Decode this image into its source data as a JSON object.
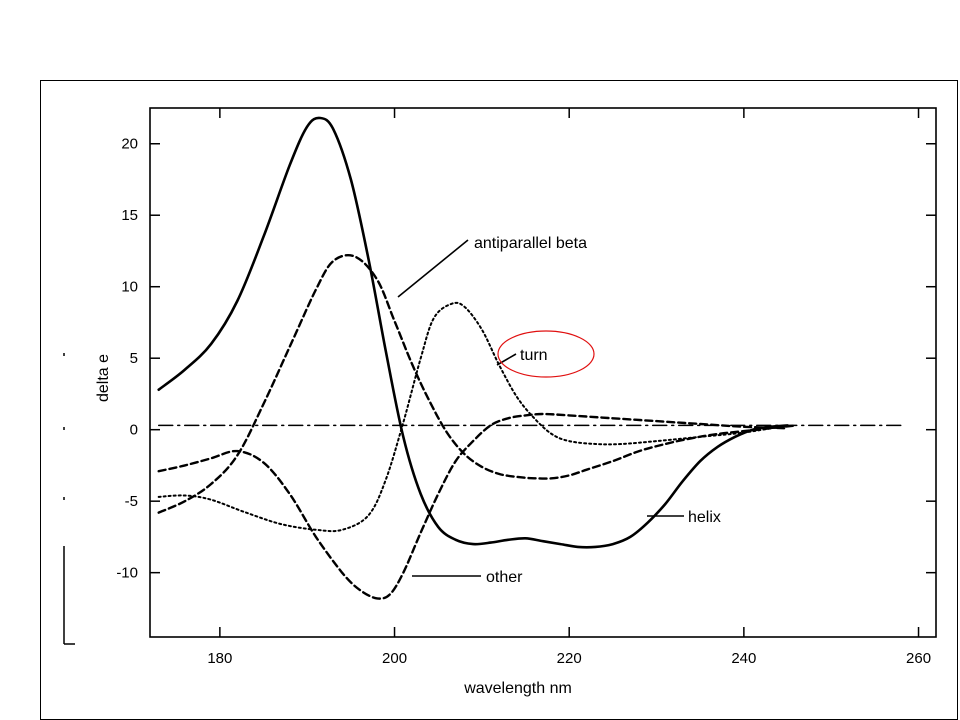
{
  "chart_data": {
    "type": "line",
    "xlabel": "wavelength nm",
    "ylabel": "delta e",
    "xlim": [
      172,
      262
    ],
    "ylim": [
      -14.5,
      22.5
    ],
    "x_ticks": [
      180,
      200,
      220,
      240,
      260
    ],
    "y_ticks": [
      20,
      15,
      10,
      5,
      0,
      -5,
      -10
    ],
    "grid": false,
    "series": [
      {
        "name": "helix",
        "style": "solid",
        "x": [
          173,
          176,
          179,
          182,
          185,
          188,
          190,
          191.5,
          193,
          195,
          197,
          199,
          201,
          203,
          205,
          207,
          209,
          211,
          213,
          215,
          217,
          219,
          221,
          223,
          225,
          227,
          229,
          231,
          233,
          235,
          237,
          239,
          241,
          243,
          245
        ],
        "y": [
          2.8,
          4.2,
          6.0,
          9.0,
          13.5,
          18.5,
          21.2,
          21.8,
          21.0,
          17.5,
          12.0,
          5.5,
          -0.5,
          -4.5,
          -6.8,
          -7.7,
          -8.0,
          -7.9,
          -7.7,
          -7.6,
          -7.8,
          -8.0,
          -8.2,
          -8.2,
          -8.0,
          -7.5,
          -6.5,
          -5.2,
          -3.6,
          -2.2,
          -1.2,
          -0.5,
          0.0,
          0.2,
          0.3
        ]
      },
      {
        "name": "antiparallel beta",
        "style": "dashed",
        "x": [
          173,
          176,
          179,
          182,
          185,
          188,
          191,
          193,
          195.5,
          198,
          200,
          202,
          204,
          206,
          208,
          210,
          212,
          214,
          216,
          218,
          220,
          222,
          225,
          228,
          231,
          234,
          237,
          240,
          243,
          246
        ],
        "y": [
          -5.8,
          -5.0,
          -3.8,
          -1.8,
          1.8,
          5.8,
          9.8,
          11.8,
          12.1,
          10.5,
          7.6,
          4.6,
          2.0,
          -0.2,
          -1.7,
          -2.6,
          -3.1,
          -3.3,
          -3.4,
          -3.4,
          -3.2,
          -2.8,
          -2.2,
          -1.5,
          -1.0,
          -0.6,
          -0.3,
          -0.1,
          0.1,
          0.3
        ]
      },
      {
        "name": "turn",
        "style": "dotted",
        "x": [
          173,
          176,
          179,
          183,
          187,
          191,
          194,
          197,
          199,
          201,
          203,
          204.5,
          206.5,
          208,
          210,
          212,
          214,
          216,
          218,
          220,
          223,
          226,
          230,
          235,
          240,
          245
        ],
        "y": [
          -4.7,
          -4.6,
          -4.9,
          -5.8,
          -6.6,
          -7.0,
          -7.0,
          -6.0,
          -3.5,
          0.5,
          5.0,
          7.8,
          8.8,
          8.6,
          7.0,
          4.5,
          2.3,
          0.8,
          -0.3,
          -0.8,
          -1.0,
          -1.0,
          -0.8,
          -0.5,
          -0.2,
          0.3
        ]
      },
      {
        "name": "other",
        "style": "dashed",
        "x": [
          173,
          176,
          179,
          182,
          185,
          188,
          191,
          194,
          196,
          198,
          199.5,
          201,
          203,
          205,
          207,
          209,
          211,
          213,
          215,
          217,
          220,
          225,
          230,
          235,
          240,
          245
        ],
        "y": [
          -2.9,
          -2.5,
          -2.0,
          -1.5,
          -2.3,
          -4.5,
          -7.5,
          -10.0,
          -11.2,
          -11.8,
          -11.5,
          -10.0,
          -7.2,
          -4.5,
          -2.2,
          -0.8,
          0.3,
          0.8,
          1.0,
          1.1,
          1.0,
          0.8,
          0.6,
          0.4,
          0.2,
          0.1
        ]
      },
      {
        "name": "",
        "style": "dashdot",
        "x": [
          173,
          258
        ],
        "y": [
          0.3,
          0.3
        ]
      }
    ],
    "annotations": [
      {
        "text": "antiparallel beta"
      },
      {
        "text": "turn"
      },
      {
        "text": "helix"
      },
      {
        "text": "other"
      }
    ],
    "highlight": {
      "target": "turn",
      "color": "#e01010"
    }
  }
}
